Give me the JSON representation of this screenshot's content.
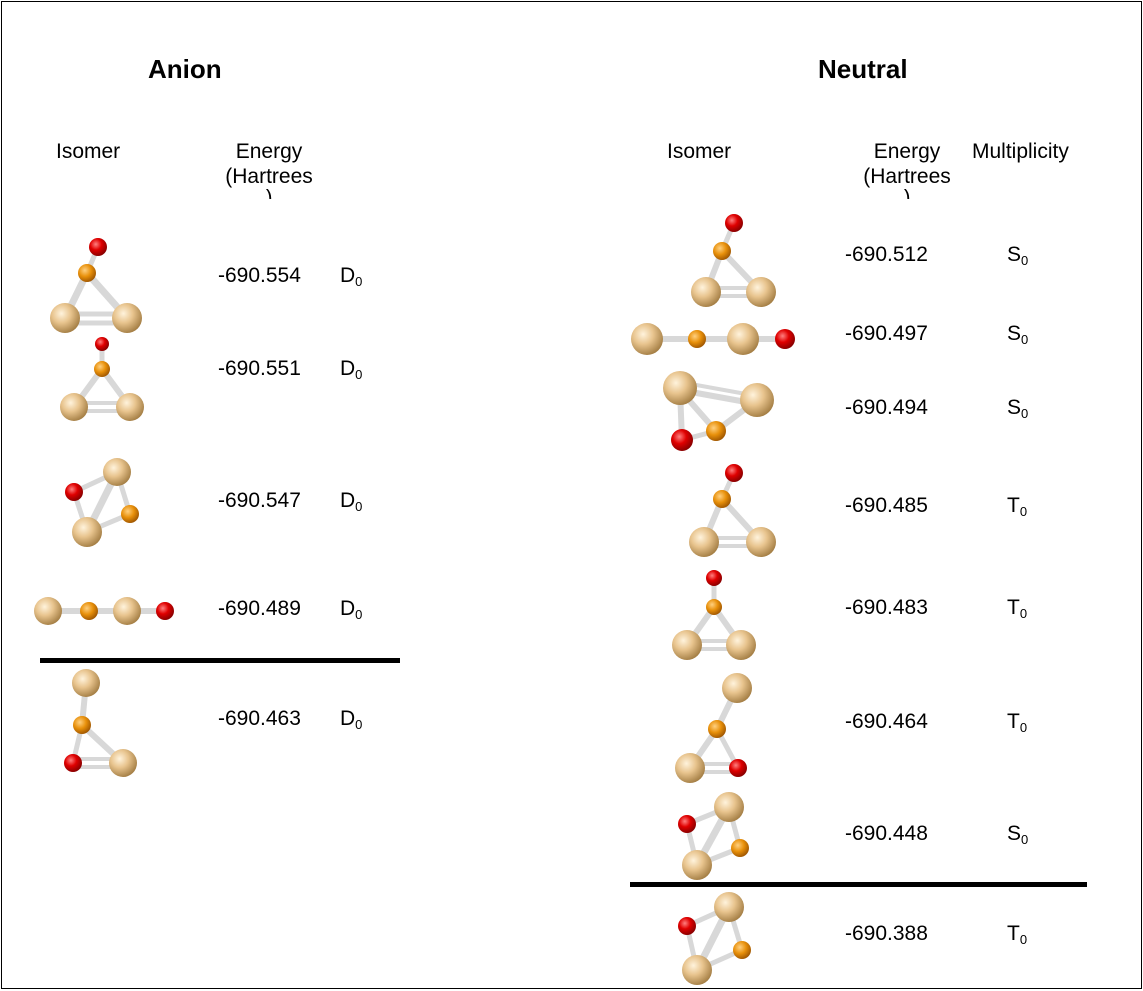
{
  "anion": {
    "title": "Anion",
    "headers": {
      "isomer": "Isomer",
      "energy_line1": "Energy",
      "energy_line2": "(Hartrees",
      "energy_line3": ")"
    },
    "rows": [
      {
        "energy": "-690.554",
        "mult_letter": "D",
        "mult_sub": "0"
      },
      {
        "energy": "-690.551",
        "mult_letter": "D",
        "mult_sub": "0"
      },
      {
        "energy": "-690.547",
        "mult_letter": "D",
        "mult_sub": "0"
      },
      {
        "energy": "-690.489",
        "mult_letter": "D",
        "mult_sub": "0"
      },
      {
        "energy": "-690.463",
        "mult_letter": "D",
        "mult_sub": "0"
      }
    ]
  },
  "neutral": {
    "title": "Neutral",
    "headers": {
      "isomer": "Isomer",
      "energy_line1": "Energy",
      "energy_line2": "(Hartrees",
      "energy_line3": ")",
      "multiplicity": "Multiplicity"
    },
    "rows": [
      {
        "energy": "-690.512",
        "mult_letter": "S",
        "mult_sub": "0"
      },
      {
        "energy": "-690.497",
        "mult_letter": "S",
        "mult_sub": "0"
      },
      {
        "energy": "-690.494",
        "mult_letter": "S",
        "mult_sub": "0"
      },
      {
        "energy": "-690.485",
        "mult_letter": "T",
        "mult_sub": "0"
      },
      {
        "energy": "-690.483",
        "mult_letter": "T",
        "mult_sub": "0"
      },
      {
        "energy": "-690.464",
        "mult_letter": "T",
        "mult_sub": "0"
      },
      {
        "energy": "-690.448",
        "mult_letter": "S",
        "mult_sub": "0"
      },
      {
        "energy": "-690.388",
        "mult_letter": "T",
        "mult_sub": "0"
      }
    ]
  },
  "colors": {
    "large_atom": "#e8c48e",
    "small_atom": "#e8900a",
    "red_atom": "#e00000",
    "bond": "#d8d8d8"
  }
}
